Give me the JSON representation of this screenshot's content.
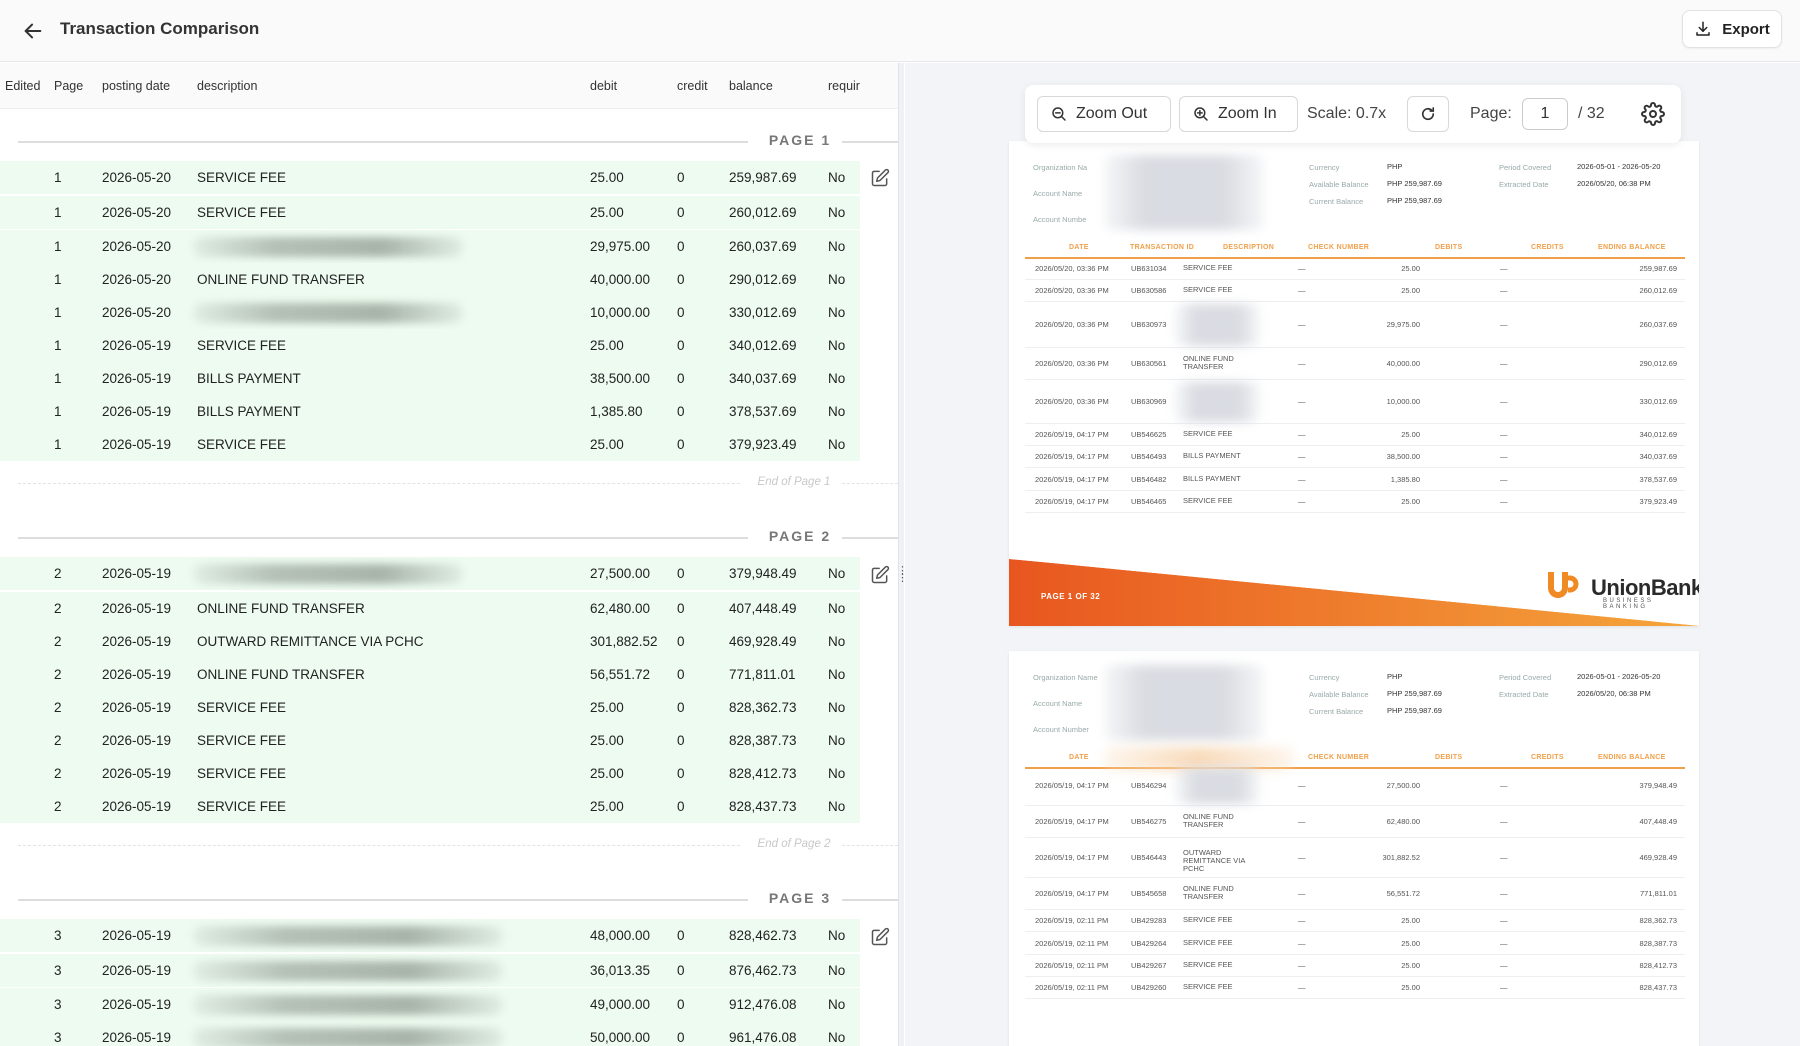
{
  "header": {
    "title": "Transaction Comparison",
    "export_label": "Export"
  },
  "table": {
    "columns": {
      "edited": "Edited",
      "page": "Page",
      "posting_date": "posting date",
      "description": "description",
      "debit": "debit",
      "credit": "credit",
      "balance": "balance",
      "required": "requir"
    },
    "sections": [
      {
        "label": "PAGE 1",
        "end_label": "End of Page 1",
        "rows": [
          {
            "page": "1",
            "date": "2026-05-20",
            "desc": "SERVICE FEE",
            "debit": "25.00",
            "credit": "0",
            "balance": "259,987.69",
            "req": "No"
          },
          {
            "page": "1",
            "date": "2026-05-20",
            "desc": "SERVICE FEE",
            "debit": "25.00",
            "credit": "0",
            "balance": "260,012.69",
            "req": "No"
          },
          {
            "page": "1",
            "date": "2026-05-20",
            "desc": "",
            "debit": "29,975.00",
            "credit": "0",
            "balance": "260,037.69",
            "req": "No"
          },
          {
            "page": "1",
            "date": "2026-05-20",
            "desc": "ONLINE FUND TRANSFER",
            "debit": "40,000.00",
            "credit": "0",
            "balance": "290,012.69",
            "req": "No"
          },
          {
            "page": "1",
            "date": "2026-05-20",
            "desc": "",
            "debit": "10,000.00",
            "credit": "0",
            "balance": "330,012.69",
            "req": "No"
          },
          {
            "page": "1",
            "date": "2026-05-19",
            "desc": "SERVICE FEE",
            "debit": "25.00",
            "credit": "0",
            "balance": "340,012.69",
            "req": "No"
          },
          {
            "page": "1",
            "date": "2026-05-19",
            "desc": "BILLS PAYMENT",
            "debit": "38,500.00",
            "credit": "0",
            "balance": "340,037.69",
            "req": "No"
          },
          {
            "page": "1",
            "date": "2026-05-19",
            "desc": "BILLS PAYMENT",
            "debit": "1,385.80",
            "credit": "0",
            "balance": "378,537.69",
            "req": "No"
          },
          {
            "page": "1",
            "date": "2026-05-19",
            "desc": "SERVICE FEE",
            "debit": "25.00",
            "credit": "0",
            "balance": "379,923.49",
            "req": "No"
          }
        ]
      },
      {
        "label": "PAGE 2",
        "end_label": "End of Page 2",
        "rows": [
          {
            "page": "2",
            "date": "2026-05-19",
            "desc": "",
            "debit": "27,500.00",
            "credit": "0",
            "balance": "379,948.49",
            "req": "No"
          },
          {
            "page": "2",
            "date": "2026-05-19",
            "desc": "ONLINE FUND TRANSFER",
            "debit": "62,480.00",
            "credit": "0",
            "balance": "407,448.49",
            "req": "No"
          },
          {
            "page": "2",
            "date": "2026-05-19",
            "desc": "OUTWARD REMITTANCE VIA PCHC",
            "debit": "301,882.52",
            "credit": "0",
            "balance": "469,928.49",
            "req": "No"
          },
          {
            "page": "2",
            "date": "2026-05-19",
            "desc": "ONLINE FUND TRANSFER",
            "debit": "56,551.72",
            "credit": "0",
            "balance": "771,811.01",
            "req": "No"
          },
          {
            "page": "2",
            "date": "2026-05-19",
            "desc": "SERVICE FEE",
            "debit": "25.00",
            "credit": "0",
            "balance": "828,362.73",
            "req": "No"
          },
          {
            "page": "2",
            "date": "2026-05-19",
            "desc": "SERVICE FEE",
            "debit": "25.00",
            "credit": "0",
            "balance": "828,387.73",
            "req": "No"
          },
          {
            "page": "2",
            "date": "2026-05-19",
            "desc": "SERVICE FEE",
            "debit": "25.00",
            "credit": "0",
            "balance": "828,412.73",
            "req": "No"
          },
          {
            "page": "2",
            "date": "2026-05-19",
            "desc": "SERVICE FEE",
            "debit": "25.00",
            "credit": "0",
            "balance": "828,437.73",
            "req": "No"
          }
        ]
      },
      {
        "label": "PAGE 3",
        "end_label": "",
        "rows": [
          {
            "page": "3",
            "date": "2026-05-19",
            "desc": "",
            "debit": "48,000.00",
            "credit": "0",
            "balance": "828,462.73",
            "req": "No"
          },
          {
            "page": "3",
            "date": "2026-05-19",
            "desc": "",
            "debit": "36,013.35",
            "credit": "0",
            "balance": "876,462.73",
            "req": "No"
          },
          {
            "page": "3",
            "date": "2026-05-19",
            "desc": "",
            "debit": "49,000.00",
            "credit": "0",
            "balance": "912,476.08",
            "req": "No"
          },
          {
            "page": "3",
            "date": "2026-05-19",
            "desc": "",
            "debit": "50,000.00",
            "credit": "0",
            "balance": "961,476.08",
            "req": "No"
          }
        ]
      }
    ]
  },
  "viewer": {
    "zoom_out_label": "Zoom Out",
    "zoom_in_label": "Zoom In",
    "scale_label": "Scale: 0.7x",
    "page_label": "Page:",
    "page_value": "1",
    "page_total": "/ 32",
    "docs": [
      {
        "meta_labels": [
          "Organization Na",
          "Account Name",
          "Account Numbe"
        ],
        "right_meta": [
          {
            "k": "Currency",
            "v": "PHP"
          },
          {
            "k": "Available Balance",
            "v": "PHP 259,987.69"
          },
          {
            "k": "Current Balance",
            "v": "PHP 259,987.69"
          }
        ],
        "far_meta": [
          {
            "k": "Period Covered",
            "v": "2026-05-01 - 2026-05-20"
          },
          {
            "k": "Extracted Date",
            "v": "2026/05/20, 06:38 PM"
          }
        ],
        "headers": [
          "DATE",
          "TRANSACTION ID",
          "DESCRIPTION",
          "CHECK NUMBER",
          "DEBITS",
          "CREDITS",
          "ENDING BALANCE"
        ],
        "rows": [
          {
            "date": "2026/05/20, 03:36 PM",
            "id": "UB631034",
            "desc": "SERVICE FEE",
            "check": "—",
            "debit": "25.00",
            "credit": "—",
            "bal": "259,987.69"
          },
          {
            "date": "2026/05/20, 03:36 PM",
            "id": "UB630586",
            "desc": "SERVICE FEE",
            "check": "—",
            "debit": "25.00",
            "credit": "—",
            "bal": "260,012.69"
          },
          {
            "date": "2026/05/20, 03:36 PM",
            "id": "UB630973",
            "desc": "",
            "check": "—",
            "debit": "29,975.00",
            "credit": "—",
            "bal": "260,037.69"
          },
          {
            "date": "2026/05/20, 03:36 PM",
            "id": "UB630561",
            "desc": "ONLINE FUND TRANSFER",
            "check": "—",
            "debit": "40,000.00",
            "credit": "—",
            "bal": "290,012.69"
          },
          {
            "date": "2026/05/20, 03:36 PM",
            "id": "UB630969",
            "desc": "",
            "check": "—",
            "debit": "10,000.00",
            "credit": "—",
            "bal": "330,012.69"
          },
          {
            "date": "2026/05/19, 04:17 PM",
            "id": "UB546625",
            "desc": "SERVICE FEE",
            "check": "—",
            "debit": "25.00",
            "credit": "—",
            "bal": "340,012.69"
          },
          {
            "date": "2026/05/19, 04:17 PM",
            "id": "UB546493",
            "desc": "BILLS PAYMENT",
            "check": "—",
            "debit": "38,500.00",
            "credit": "—",
            "bal": "340,037.69"
          },
          {
            "date": "2026/05/19, 04:17 PM",
            "id": "UB546482",
            "desc": "BILLS PAYMENT",
            "check": "—",
            "debit": "1,385.80",
            "credit": "—",
            "bal": "378,537.69"
          },
          {
            "date": "2026/05/19, 04:17 PM",
            "id": "UB546465",
            "desc": "SERVICE FEE",
            "check": "—",
            "debit": "25.00",
            "credit": "—",
            "bal": "379,923.49"
          }
        ],
        "footer": "PAGE 1 OF 32",
        "brand": "UnionBank",
        "brand_sub": "BUSINESS BANKING"
      },
      {
        "meta_labels": [
          "Organization Name",
          "Account Name",
          "Account Number"
        ],
        "right_meta": [
          {
            "k": "Currency",
            "v": "PHP"
          },
          {
            "k": "Available Balance",
            "v": "PHP 259,987.69"
          },
          {
            "k": "Current Balance",
            "v": "PHP 259,987.69"
          }
        ],
        "far_meta": [
          {
            "k": "Period Covered",
            "v": "2026-05-01 - 2026-05-20"
          },
          {
            "k": "Extracted Date",
            "v": "2026/05/20, 06:38 PM"
          }
        ],
        "headers": [
          "DATE",
          "",
          "",
          "CHECK NUMBER",
          "DEBITS",
          "CREDITS",
          "ENDING BALANCE"
        ],
        "rows": [
          {
            "date": "2026/05/19, 04:17 PM",
            "id": "UB546294",
            "desc": "",
            "check": "—",
            "debit": "27,500.00",
            "credit": "—",
            "bal": "379,948.49"
          },
          {
            "date": "2026/05/19, 04:17 PM",
            "id": "UB546275",
            "desc": "ONLINE FUND TRANSFER",
            "check": "—",
            "debit": "62,480.00",
            "credit": "—",
            "bal": "407,448.49"
          },
          {
            "date": "2026/05/19, 04:17 PM",
            "id": "UB546443",
            "desc": "OUTWARD REMITTANCE VIA PCHC",
            "check": "—",
            "debit": "301,882.52",
            "credit": "—",
            "bal": "469,928.49"
          },
          {
            "date": "2026/05/19, 04:17 PM",
            "id": "UB545658",
            "desc": "ONLINE FUND TRANSFER",
            "check": "—",
            "debit": "56,551.72",
            "credit": "—",
            "bal": "771,811.01"
          },
          {
            "date": "2026/05/19, 02:11 PM",
            "id": "UB429283",
            "desc": "SERVICE FEE",
            "check": "—",
            "debit": "25.00",
            "credit": "—",
            "bal": "828,362.73"
          },
          {
            "date": "2026/05/19, 02:11 PM",
            "id": "UB429264",
            "desc": "SERVICE FEE",
            "check": "—",
            "debit": "25.00",
            "credit": "—",
            "bal": "828,387.73"
          },
          {
            "date": "2026/05/19, 02:11 PM",
            "id": "UB429267",
            "desc": "SERVICE FEE",
            "check": "—",
            "debit": "25.00",
            "credit": "—",
            "bal": "828,412.73"
          },
          {
            "date": "2026/05/19, 02:11 PM",
            "id": "UB429260",
            "desc": "SERVICE FEE",
            "check": "—",
            "debit": "25.00",
            "credit": "—",
            "bal": "828,437.73"
          }
        ]
      }
    ]
  },
  "icons": {
    "back": "arrow-left-icon",
    "export": "download-icon",
    "zoom_out": "zoom-out-icon",
    "zoom_in": "zoom-in-icon",
    "reset": "refresh-icon",
    "settings": "gear-icon",
    "edit": "edit-icon"
  },
  "colors": {
    "row_bg": "#edfbf0",
    "accent_orange": "#f0a04b",
    "banner_start": "#e8561f",
    "banner_end": "#f5a63c"
  }
}
